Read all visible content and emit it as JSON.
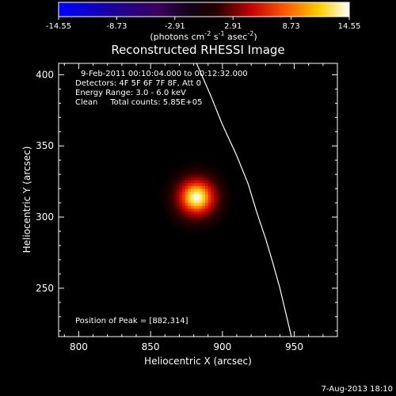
{
  "chart_data": {
    "type": "heatmap",
    "title": "Reconstructed RHESSI Image",
    "xlabel": "Heliocentric X (arcsec)",
    "ylabel": "Heliocentric Y (arcsec)",
    "xlim": [
      786,
      980
    ],
    "ylim": [
      216,
      408
    ],
    "xticks": [
      800,
      850,
      900,
      950
    ],
    "yticks": [
      250,
      300,
      350,
      400
    ],
    "colorbar": {
      "ticks": [
        "-14.55",
        "-8.73",
        "-2.91",
        "2.91",
        "8.73",
        "14.55"
      ],
      "min": -14.55,
      "max": 14.55,
      "unit_base": "(photons cm",
      "unit_sup1": "-2",
      "unit_mid": " s",
      "unit_sup2": "-1",
      "unit_mid2": " asec",
      "unit_sup3": "-2",
      "unit_end": ")"
    },
    "annotations": [
      "9-Feb-2011 00:10:04.000 to 00:12:32.000",
      "Detectors: 4F 5F 6F 7F 8F, Att 0",
      "Energy Range: 3.0 - 6.0 keV",
      "Clean     Total counts: 5.85E+05"
    ],
    "peak_label": "Position of Peak = [882,314]",
    "source": {
      "x": 882,
      "y": 314,
      "peak": 14.55,
      "sigma": 9
    },
    "limb": [
      [
        882,
        408
      ],
      [
        892,
        385
      ],
      [
        900,
        365
      ],
      [
        910,
        343
      ],
      [
        918,
        323
      ],
      [
        924,
        303
      ],
      [
        930,
        285
      ],
      [
        935,
        268
      ],
      [
        940,
        250
      ],
      [
        944,
        233
      ],
      [
        948,
        216
      ]
    ],
    "timestamp": "7-Aug-2013 18:10"
  }
}
